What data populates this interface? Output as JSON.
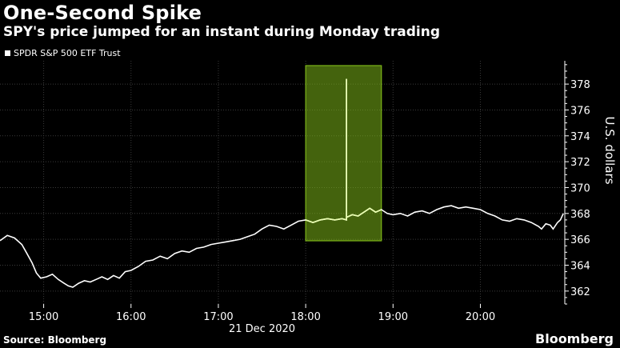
{
  "title": "One-Second Spike",
  "subtitle": "SPY's price jumped for an instant during Monday trading",
  "legend_label": "SPDR S&P 500 ETF Trust",
  "source": "Source: Bloomberg",
  "brand": "Bloomberg",
  "chart_data": {
    "type": "line",
    "title": "One-Second Spike",
    "subtitle": "SPY's price jumped for an instant during Monday trading",
    "ylabel": "U.S. dollars",
    "xlabel": "21 Dec 2020",
    "y_ticks": [
      362,
      364,
      366,
      368,
      370,
      372,
      374,
      376,
      378
    ],
    "x_ticks": [
      "15:00",
      "16:00",
      "17:00",
      "18:00",
      "19:00",
      "20:00"
    ],
    "xlim": [
      "14:30",
      "20:58"
    ],
    "ylim": [
      361,
      379.8
    ],
    "grid": true,
    "y_axis_side": "right",
    "legend_position": "top-left",
    "highlight": {
      "x_start": "18:00",
      "x_end": "18:52",
      "color": "#7cb518"
    },
    "series": [
      {
        "name": "SPDR S&P 500 ETF Trust",
        "color": "#ffffff",
        "points": [
          [
            "14:30",
            365.9
          ],
          [
            "14:35",
            366.3
          ],
          [
            "14:40",
            366.1
          ],
          [
            "14:45",
            365.6
          ],
          [
            "14:48",
            365.0
          ],
          [
            "14:52",
            364.2
          ],
          [
            "14:55",
            363.4
          ],
          [
            "14:58",
            363.0
          ],
          [
            "15:02",
            363.1
          ],
          [
            "15:06",
            363.3
          ],
          [
            "15:10",
            362.9
          ],
          [
            "15:14",
            362.6
          ],
          [
            "15:17",
            362.4
          ],
          [
            "15:20",
            362.3
          ],
          [
            "15:24",
            362.6
          ],
          [
            "15:28",
            362.8
          ],
          [
            "15:32",
            362.7
          ],
          [
            "15:36",
            362.9
          ],
          [
            "15:40",
            363.1
          ],
          [
            "15:44",
            362.9
          ],
          [
            "15:48",
            363.2
          ],
          [
            "15:52",
            363.0
          ],
          [
            "15:56",
            363.5
          ],
          [
            "16:00",
            363.6
          ],
          [
            "16:05",
            363.9
          ],
          [
            "16:10",
            364.3
          ],
          [
            "16:15",
            364.4
          ],
          [
            "16:20",
            364.7
          ],
          [
            "16:25",
            364.5
          ],
          [
            "16:30",
            364.9
          ],
          [
            "16:35",
            365.1
          ],
          [
            "16:40",
            365.0
          ],
          [
            "16:45",
            365.3
          ],
          [
            "16:50",
            365.4
          ],
          [
            "16:55",
            365.6
          ],
          [
            "17:00",
            365.7
          ],
          [
            "17:05",
            365.8
          ],
          [
            "17:10",
            365.9
          ],
          [
            "17:15",
            366.0
          ],
          [
            "17:20",
            366.2
          ],
          [
            "17:25",
            366.4
          ],
          [
            "17:30",
            366.8
          ],
          [
            "17:35",
            367.1
          ],
          [
            "17:40",
            367.0
          ],
          [
            "17:45",
            366.8
          ],
          [
            "17:50",
            367.1
          ],
          [
            "17:55",
            367.4
          ],
          [
            "18:00",
            367.5
          ],
          [
            "18:05",
            367.3
          ],
          [
            "18:10",
            367.5
          ],
          [
            "18:15",
            367.6
          ],
          [
            "18:20",
            367.5
          ],
          [
            "18:25",
            367.6
          ],
          [
            "18:28",
            367.5
          ],
          [
            "18:28",
            378.4
          ],
          [
            "18:28",
            367.7
          ],
          [
            "18:32",
            367.9
          ],
          [
            "18:36",
            367.8
          ],
          [
            "18:40",
            368.1
          ],
          [
            "18:44",
            368.4
          ],
          [
            "18:48",
            368.1
          ],
          [
            "18:52",
            368.3
          ],
          [
            "18:56",
            368.0
          ],
          [
            "19:00",
            367.9
          ],
          [
            "19:05",
            368.0
          ],
          [
            "19:10",
            367.8
          ],
          [
            "19:15",
            368.1
          ],
          [
            "19:20",
            368.2
          ],
          [
            "19:25",
            368.0
          ],
          [
            "19:30",
            368.3
          ],
          [
            "19:35",
            368.5
          ],
          [
            "19:40",
            368.6
          ],
          [
            "19:45",
            368.4
          ],
          [
            "19:50",
            368.5
          ],
          [
            "19:55",
            368.4
          ],
          [
            "20:00",
            368.3
          ],
          [
            "20:05",
            368.0
          ],
          [
            "20:10",
            367.8
          ],
          [
            "20:15",
            367.5
          ],
          [
            "20:20",
            367.4
          ],
          [
            "20:25",
            367.6
          ],
          [
            "20:30",
            367.5
          ],
          [
            "20:35",
            367.3
          ],
          [
            "20:40",
            367.0
          ],
          [
            "20:42",
            366.8
          ],
          [
            "20:45",
            367.2
          ],
          [
            "20:48",
            367.1
          ],
          [
            "20:50",
            366.8
          ],
          [
            "20:53",
            367.3
          ],
          [
            "20:55",
            367.5
          ],
          [
            "20:57",
            368.0
          ]
        ]
      }
    ]
  }
}
